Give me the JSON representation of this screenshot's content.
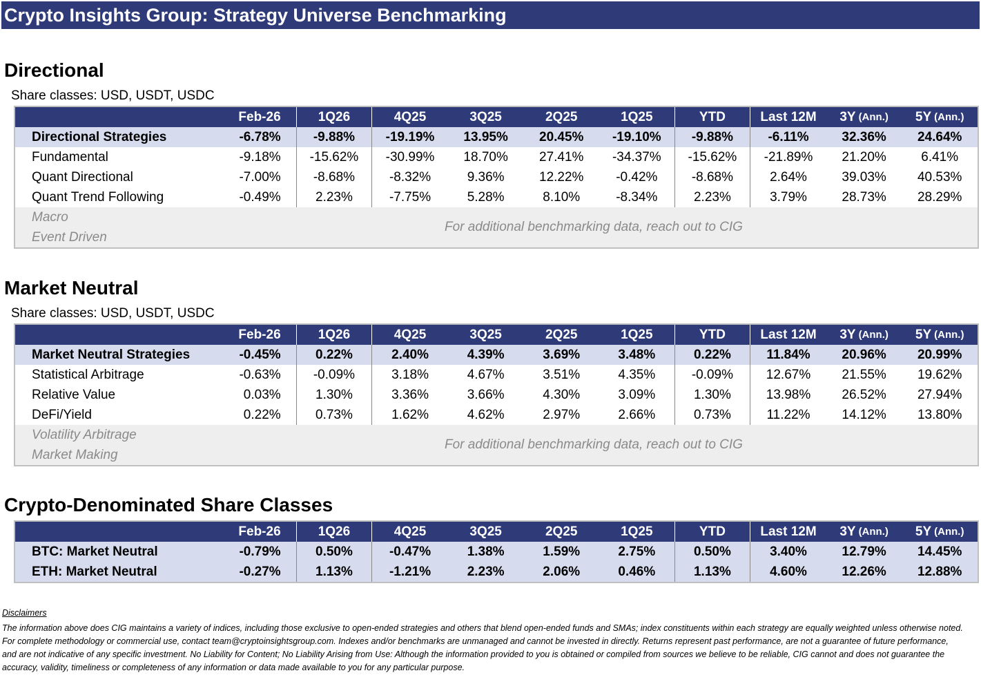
{
  "page_title": "Crypto Insights Group: Strategy Universe Benchmarking",
  "columns": [
    "Feb-26",
    "1Q26",
    "4Q25",
    "3Q25",
    "2Q25",
    "1Q25",
    "YTD",
    "Last 12M",
    "3Y",
    "5Y"
  ],
  "ann_suffix": "(Ann.)",
  "directional": {
    "title": "Directional",
    "share_classes": "Share classes: USD, USDT, USDC",
    "aggregate": {
      "label": "Directional Strategies",
      "values": [
        "-6.78%",
        "-9.88%",
        "-19.19%",
        "13.95%",
        "20.45%",
        "-19.10%",
        "-9.88%",
        "-6.11%",
        "32.36%",
        "24.64%"
      ]
    },
    "rows": [
      {
        "label": "Fundamental",
        "values": [
          "-9.18%",
          "-15.62%",
          "-30.99%",
          "18.70%",
          "27.41%",
          "-34.37%",
          "-15.62%",
          "-21.89%",
          "21.20%",
          "6.41%"
        ]
      },
      {
        "label": "Quant Directional",
        "values": [
          "-7.00%",
          "-8.68%",
          "-8.32%",
          "9.36%",
          "12.22%",
          "-0.42%",
          "-8.68%",
          "2.64%",
          "39.03%",
          "40.53%"
        ]
      },
      {
        "label": "Quant Trend Following",
        "values": [
          "-0.49%",
          "2.23%",
          "-7.75%",
          "5.28%",
          "8.10%",
          "-8.34%",
          "2.23%",
          "3.79%",
          "28.73%",
          "28.29%"
        ]
      }
    ],
    "restricted": [
      "Macro",
      "Event Driven"
    ],
    "note": "For additional benchmarking data, reach out to CIG"
  },
  "market_neutral": {
    "title": "Market Neutral",
    "share_classes": "Share classes: USD, USDT, USDC",
    "aggregate": {
      "label": "Market Neutral Strategies",
      "values": [
        "-0.45%",
        "0.22%",
        "2.40%",
        "4.39%",
        "3.69%",
        "3.48%",
        "0.22%",
        "11.84%",
        "20.96%",
        "20.99%"
      ]
    },
    "rows": [
      {
        "label": "Statistical Arbitrage",
        "values": [
          "-0.63%",
          "-0.09%",
          "3.18%",
          "4.67%",
          "3.51%",
          "4.35%",
          "-0.09%",
          "12.67%",
          "21.55%",
          "19.62%"
        ]
      },
      {
        "label": "Relative Value",
        "values": [
          "0.03%",
          "1.30%",
          "3.36%",
          "3.66%",
          "4.30%",
          "3.09%",
          "1.30%",
          "13.98%",
          "26.52%",
          "27.94%"
        ]
      },
      {
        "label": "DeFi/Yield",
        "values": [
          "0.22%",
          "0.73%",
          "1.62%",
          "4.62%",
          "2.97%",
          "2.66%",
          "0.73%",
          "11.22%",
          "14.12%",
          "13.80%"
        ]
      }
    ],
    "restricted": [
      "Volatility Arbitrage",
      "Market Making"
    ],
    "note": "For additional benchmarking data, reach out to CIG"
  },
  "crypto": {
    "title": "Crypto-Denominated Share Classes",
    "rows": [
      {
        "label": "BTC: Market Neutral",
        "values": [
          "-0.79%",
          "0.50%",
          "-0.47%",
          "1.38%",
          "1.59%",
          "2.75%",
          "0.50%",
          "3.40%",
          "12.79%",
          "14.45%"
        ]
      },
      {
        "label": "ETH: Market Neutral",
        "values": [
          "-0.27%",
          "1.13%",
          "-1.21%",
          "2.23%",
          "2.06%",
          "0.46%",
          "1.13%",
          "4.60%",
          "12.26%",
          "12.88%"
        ]
      }
    ]
  },
  "disclaimers": {
    "heading": "Disclaimers",
    "lines": [
      "The information above does CIG maintains a variety of indices, including those exclusive to open-ended strategies and others that blend open-ended funds and SMAs; index constituents within each strategy are equally weighted unless otherwise noted.",
      "For complete methodology or commercial use, contact team@cryptoinsightsgroup.com. Indexes and/or benchmarks are unmanaged and cannot be invested in directly. Returns represent past performance, are not a guarantee of future performance,",
      "and are not indicative of any specific investment. No Liability for Content; No Liability Arising from Use: Although the information provided to you is obtained or compiled from sources we believe to be reliable, CIG cannot and does not guarantee the",
      "accuracy, validity, timeliness or completeness of any information or data made available to you for any particular purpose."
    ]
  }
}
